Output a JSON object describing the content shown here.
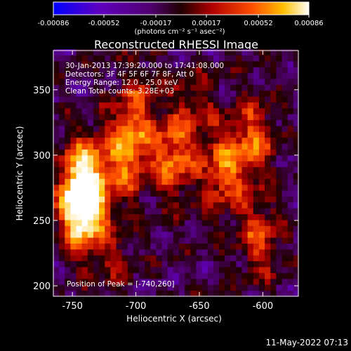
{
  "colorbar": {
    "tick_labels": [
      "-0.00086",
      "-0.00052",
      "-0.00017",
      "0.00017",
      "0.00052",
      "0.00086"
    ],
    "units": "(photons cm⁻² s⁻¹ asec⁻²)",
    "range": [
      -0.00086,
      0.00086
    ],
    "colormap": [
      "#0000ff",
      "#6000c0",
      "#500070",
      "#200000",
      "#b00000",
      "#ff5000",
      "#ffc000",
      "#ffffff"
    ]
  },
  "annotations": {
    "time": "30-Jan-2013 17:39:20.000 to 17:41:08.000",
    "detectors": "Detectors: 3F 4F 5F 6F 7F 8F, Att 0",
    "energy": "Energy Range: 12.0 - 25.0 keV",
    "clean": "Clean     Total counts: 3.28E+03",
    "peak": "Position of Peak = [-740,260]"
  },
  "footer": {
    "date": "11-May-2022 07:13"
  },
  "chart_data": {
    "type": "heatmap",
    "title": "Reconstructed RHESSI Image",
    "xlabel": "Heliocentric X (arcsec)",
    "ylabel": "Heliocentric Y (arcsec)",
    "xlim": [
      -765,
      -572
    ],
    "ylim": [
      192,
      380
    ],
    "x_ticks": [
      -750,
      -700,
      -650,
      -600
    ],
    "x_tick_labels": [
      "-750",
      "-700",
      "-650",
      "-600"
    ],
    "y_ticks": [
      200,
      250,
      300,
      350
    ],
    "y_tick_labels": [
      "200",
      "250",
      "300",
      "350"
    ],
    "value_range": [
      -0.00086,
      0.00086
    ],
    "peak_position": [
      -740,
      260
    ],
    "bright_regions": [
      {
        "x": -745,
        "y": 255,
        "value": 0.00086
      },
      {
        "x": -743,
        "y": 280,
        "value": 0.0007
      },
      {
        "x": -710,
        "y": 300,
        "value": 0.0006
      },
      {
        "x": -673,
        "y": 295,
        "value": 0.00055
      },
      {
        "x": -633,
        "y": 285,
        "value": 0.0005
      },
      {
        "x": -610,
        "y": 310,
        "value": 0.00045
      },
      {
        "x": -605,
        "y": 235,
        "value": 0.0004
      },
      {
        "x": -700,
        "y": 338,
        "value": 0.0003
      },
      {
        "x": -655,
        "y": 335,
        "value": 0.00025
      },
      {
        "x": -720,
        "y": 220,
        "value": 0.0002
      }
    ]
  }
}
